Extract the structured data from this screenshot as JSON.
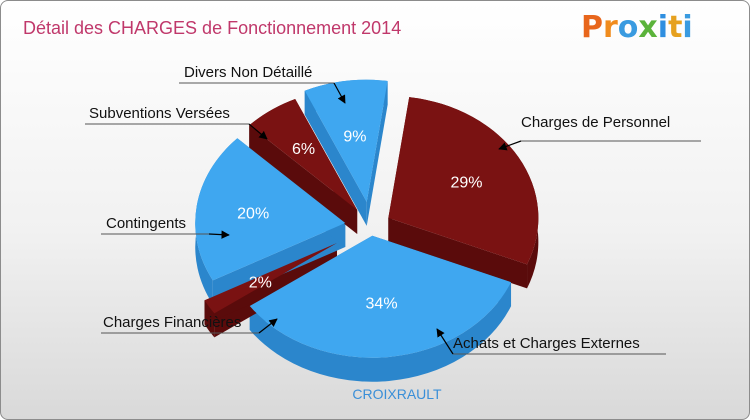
{
  "header": {
    "title": "Détail des CHARGES de Fonctionnement 2014",
    "brand_letters": [
      "P",
      "r",
      "o",
      "x",
      "i",
      "t",
      "i"
    ]
  },
  "colors": {
    "title": "#c0386b",
    "maroon": "#7a1212",
    "maroon_side": "#5a0b0b",
    "blue": "#3fa7f0",
    "blue_side": "#2b86cc",
    "subtitle": "#3a8fd8",
    "brand": [
      "#e8661c",
      "#f08c1e",
      "#3a9be0",
      "#5bb33b",
      "#2f8fe0",
      "#e6a11f",
      "#3a9be0"
    ]
  },
  "chart_data": {
    "type": "pie",
    "subtitle": "CROIXRAULT",
    "slices": [
      {
        "label": "Charges de Personnel",
        "value": 29,
        "pct_label": "29%",
        "color": "maroon"
      },
      {
        "label": "Achats et Charges Externes",
        "value": 34,
        "pct_label": "34%",
        "color": "blue"
      },
      {
        "label": "Charges Financières",
        "value": 2,
        "pct_label": "2%",
        "color": "maroon"
      },
      {
        "label": "Contingents",
        "value": 20,
        "pct_label": "20%",
        "color": "blue"
      },
      {
        "label": "Subventions Versées",
        "value": 6,
        "pct_label": "6%",
        "color": "maroon"
      },
      {
        "label": "Divers Non Détaillé",
        "value": 9,
        "pct_label": "9%",
        "color": "blue"
      }
    ]
  }
}
